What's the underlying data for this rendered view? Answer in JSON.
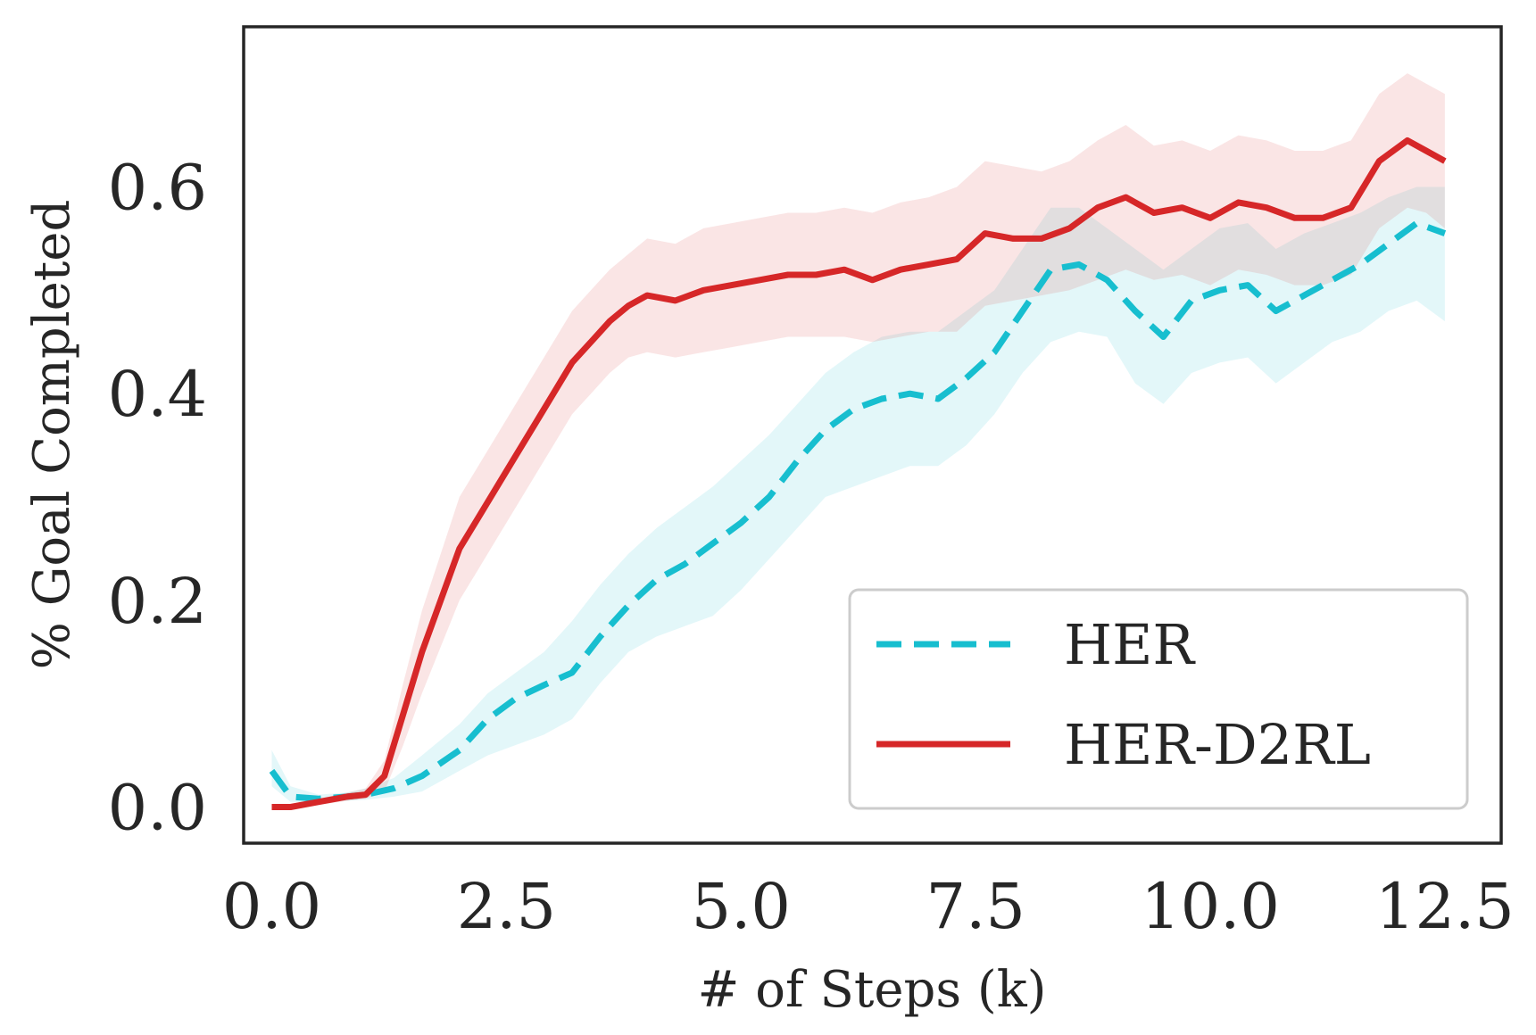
{
  "chart_data": {
    "type": "line",
    "title": "",
    "xlabel": "# of Steps (k)",
    "ylabel": "% Goal Completed",
    "xlim": [
      -0.3,
      13.1
    ],
    "ylim": [
      -0.035,
      0.755
    ],
    "xticks": [
      0.0,
      2.5,
      5.0,
      7.5,
      10.0,
      12.5
    ],
    "xtick_labels": [
      "0.0",
      "2.5",
      "5.0",
      "7.5",
      "10.0",
      "12.5"
    ],
    "yticks": [
      0.0,
      0.2,
      0.4,
      0.6
    ],
    "ytick_labels": [
      "0.0",
      "0.2",
      "0.4",
      "0.6"
    ],
    "grid": false,
    "legend_position": "lower-right",
    "series": [
      {
        "name": "HER",
        "color": "#17becf",
        "style": "dashed",
        "x": [
          0.0,
          0.2,
          0.5,
          0.8,
          1.0,
          1.3,
          1.6,
          2.0,
          2.3,
          2.6,
          2.9,
          3.2,
          3.5,
          3.8,
          4.1,
          4.4,
          4.7,
          5.0,
          5.3,
          5.6,
          5.9,
          6.2,
          6.5,
          6.8,
          7.1,
          7.4,
          7.7,
          8.0,
          8.3,
          8.6,
          8.9,
          9.2,
          9.5,
          9.8,
          10.1,
          10.4,
          10.7,
          11.0,
          11.3,
          11.6,
          11.9,
          12.2,
          12.5
        ],
        "y": [
          0.035,
          0.01,
          0.008,
          0.01,
          0.012,
          0.018,
          0.03,
          0.055,
          0.085,
          0.105,
          0.118,
          0.13,
          0.165,
          0.195,
          0.22,
          0.235,
          0.255,
          0.275,
          0.3,
          0.335,
          0.365,
          0.385,
          0.395,
          0.4,
          0.395,
          0.415,
          0.44,
          0.48,
          0.52,
          0.525,
          0.51,
          0.48,
          0.455,
          0.49,
          0.5,
          0.505,
          0.48,
          0.495,
          0.51,
          0.525,
          0.545,
          0.565,
          0.555
        ],
        "lower": [
          0.02,
          0.005,
          0.004,
          0.006,
          0.007,
          0.01,
          0.015,
          0.035,
          0.05,
          0.06,
          0.07,
          0.085,
          0.12,
          0.15,
          0.165,
          0.175,
          0.185,
          0.21,
          0.24,
          0.27,
          0.3,
          0.31,
          0.32,
          0.33,
          0.33,
          0.35,
          0.38,
          0.42,
          0.45,
          0.46,
          0.455,
          0.41,
          0.39,
          0.42,
          0.43,
          0.435,
          0.41,
          0.43,
          0.45,
          0.46,
          0.48,
          0.49,
          0.47
        ],
        "upper": [
          0.055,
          0.02,
          0.012,
          0.014,
          0.018,
          0.028,
          0.05,
          0.08,
          0.11,
          0.13,
          0.15,
          0.18,
          0.215,
          0.245,
          0.27,
          0.29,
          0.31,
          0.335,
          0.36,
          0.39,
          0.42,
          0.44,
          0.455,
          0.46,
          0.46,
          0.48,
          0.5,
          0.54,
          0.58,
          0.58,
          0.56,
          0.54,
          0.52,
          0.54,
          0.56,
          0.565,
          0.54,
          0.555,
          0.565,
          0.575,
          0.59,
          0.6,
          0.6
        ]
      },
      {
        "name": "HER-D2RL",
        "color": "#d62728",
        "style": "solid",
        "x": [
          0.0,
          0.2,
          0.5,
          0.8,
          1.0,
          1.2,
          1.4,
          1.6,
          1.8,
          2.0,
          2.2,
          2.4,
          2.6,
          2.8,
          3.0,
          3.2,
          3.4,
          3.6,
          3.8,
          4.0,
          4.3,
          4.6,
          4.9,
          5.2,
          5.5,
          5.8,
          6.1,
          6.4,
          6.7,
          7.0,
          7.3,
          7.6,
          7.9,
          8.2,
          8.5,
          8.8,
          9.1,
          9.4,
          9.7,
          10.0,
          10.3,
          10.6,
          10.9,
          11.2,
          11.5,
          11.8,
          12.1,
          12.3,
          12.5
        ],
        "y": [
          0.0,
          0.0,
          0.005,
          0.01,
          0.012,
          0.03,
          0.09,
          0.15,
          0.2,
          0.25,
          0.28,
          0.31,
          0.34,
          0.37,
          0.4,
          0.43,
          0.45,
          0.47,
          0.485,
          0.495,
          0.49,
          0.5,
          0.505,
          0.51,
          0.515,
          0.515,
          0.52,
          0.51,
          0.52,
          0.525,
          0.53,
          0.555,
          0.55,
          0.55,
          0.56,
          0.58,
          0.59,
          0.575,
          0.58,
          0.57,
          0.585,
          0.58,
          0.57,
          0.57,
          0.58,
          0.625,
          0.645,
          0.635,
          0.625
        ],
        "lower": [
          0.0,
          0.0,
          0.002,
          0.006,
          0.008,
          0.015,
          0.06,
          0.11,
          0.155,
          0.2,
          0.23,
          0.26,
          0.29,
          0.32,
          0.35,
          0.38,
          0.4,
          0.42,
          0.435,
          0.44,
          0.435,
          0.44,
          0.445,
          0.45,
          0.455,
          0.455,
          0.455,
          0.45,
          0.455,
          0.46,
          0.46,
          0.485,
          0.49,
          0.495,
          0.5,
          0.51,
          0.52,
          0.51,
          0.515,
          0.505,
          0.52,
          0.515,
          0.505,
          0.505,
          0.515,
          0.56,
          0.58,
          0.575,
          0.56
        ],
        "upper": [
          0.0,
          0.0,
          0.008,
          0.014,
          0.018,
          0.045,
          0.12,
          0.19,
          0.245,
          0.3,
          0.33,
          0.36,
          0.39,
          0.42,
          0.45,
          0.48,
          0.5,
          0.52,
          0.535,
          0.55,
          0.545,
          0.56,
          0.565,
          0.57,
          0.575,
          0.575,
          0.58,
          0.575,
          0.585,
          0.59,
          0.6,
          0.625,
          0.62,
          0.615,
          0.625,
          0.645,
          0.66,
          0.64,
          0.645,
          0.635,
          0.65,
          0.645,
          0.635,
          0.635,
          0.645,
          0.69,
          0.71,
          0.7,
          0.69
        ]
      }
    ]
  }
}
